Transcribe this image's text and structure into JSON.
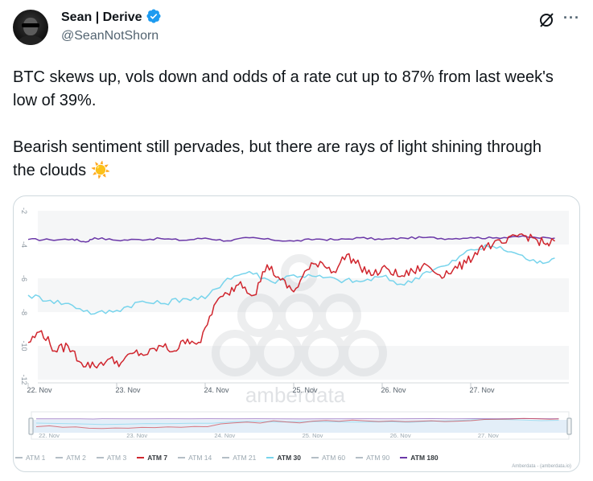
{
  "author": {
    "display_name": "Sean | Derive",
    "handle": "@SeanNotShorn",
    "verified": true
  },
  "icons": {
    "avatar": "avatar-photo",
    "verified": "verified-badge-icon",
    "grok": "grok-icon",
    "more": "more-options-icon"
  },
  "colors": {
    "verified": "#1d9bf0",
    "atm7": "#d0262e",
    "atm30": "#78d4ec",
    "atm180": "#6b38a8",
    "muted": "#536471"
  },
  "tweet": {
    "paragraph1": "BTC skews up, vols down and odds of a rate cut up to 87% from last week's low of 39%.",
    "paragraph2": "Bearish sentiment still pervades, but there are rays of light shining through the clouds",
    "emoji": "☀️"
  },
  "chart_data": {
    "type": "line",
    "title": "",
    "watermark": "amberdata",
    "credit": "Amberdata - (amberdata.io)",
    "xlabel": "",
    "ylabel": "",
    "x_ticks": [
      "22. Nov",
      "23. Nov",
      "24. Nov",
      "25. Nov",
      "26. Nov",
      "27. Nov"
    ],
    "navigator_ticks": [
      "22. Nov",
      "23. Nov",
      "24. Nov",
      "25. Nov",
      "26. Nov",
      "27. Nov"
    ],
    "y_ticks": [
      "-2",
      "-4",
      "-6",
      "-8",
      "-10",
      "-12"
    ],
    "ylim": [
      -12,
      -2
    ],
    "xlim": [
      0,
      6
    ],
    "legend": [
      {
        "name": "ATM 1",
        "active": false
      },
      {
        "name": "ATM 2",
        "active": false
      },
      {
        "name": "ATM 3",
        "active": false
      },
      {
        "name": "ATM 7",
        "active": true,
        "color": "#d0262e"
      },
      {
        "name": "ATM 14",
        "active": false
      },
      {
        "name": "ATM 21",
        "active": false
      },
      {
        "name": "ATM 30",
        "active": true,
        "color": "#78d4ec"
      },
      {
        "name": "ATM 60",
        "active": false
      },
      {
        "name": "ATM 90",
        "active": false
      },
      {
        "name": "ATM 180",
        "active": true,
        "color": "#6b38a8"
      }
    ],
    "series": [
      {
        "name": "ATM 180",
        "x": [
          0,
          0.25,
          0.5,
          0.65,
          0.75,
          1.0,
          1.25,
          1.5,
          1.75,
          2.0,
          2.25,
          2.5,
          2.75,
          3.0,
          3.25,
          3.5,
          3.75,
          4.0,
          4.25,
          4.5,
          4.75,
          5.0,
          5.25,
          5.5,
          5.75,
          5.95
        ],
        "values": [
          -3.7,
          -3.72,
          -3.68,
          -3.85,
          -3.6,
          -3.75,
          -3.7,
          -3.65,
          -3.75,
          -3.62,
          -3.78,
          -3.6,
          -3.72,
          -3.8,
          -3.68,
          -3.72,
          -3.6,
          -3.7,
          -3.62,
          -3.58,
          -3.66,
          -3.58,
          -3.62,
          -3.52,
          -3.6,
          -3.62
        ]
      },
      {
        "name": "ATM 30",
        "x": [
          0,
          0.25,
          0.5,
          0.75,
          1.0,
          1.25,
          1.5,
          1.75,
          2.0,
          2.25,
          2.5,
          2.75,
          3.0,
          3.25,
          3.5,
          3.75,
          4.0,
          4.25,
          4.5,
          4.75,
          5.0,
          5.25,
          5.5,
          5.75,
          5.95
        ],
        "values": [
          -7.0,
          -7.3,
          -7.6,
          -8.1,
          -7.9,
          -7.4,
          -7.5,
          -7.2,
          -7.2,
          -6.0,
          -5.6,
          -6.2,
          -5.8,
          -5.9,
          -6.1,
          -6.2,
          -5.9,
          -6.4,
          -5.6,
          -5.2,
          -4.3,
          -4.1,
          -4.5,
          -5.1,
          -4.8
        ]
      },
      {
        "name": "ATM 7",
        "x": [
          0,
          0.15,
          0.3,
          0.45,
          0.6,
          0.75,
          0.9,
          1.05,
          1.2,
          1.35,
          1.5,
          1.65,
          1.8,
          1.95,
          2.1,
          2.25,
          2.4,
          2.55,
          2.7,
          2.85,
          3.0,
          3.15,
          3.3,
          3.45,
          3.6,
          3.75,
          3.9,
          4.05,
          4.2,
          4.35,
          4.5,
          4.65,
          4.8,
          4.95,
          5.1,
          5.25,
          5.4,
          5.55,
          5.7,
          5.85,
          5.95
        ],
        "values": [
          -9.8,
          -9.1,
          -10.3,
          -10.0,
          -11.0,
          -11.2,
          -10.8,
          -11.0,
          -10.4,
          -10.5,
          -10.0,
          -10.3,
          -9.6,
          -9.8,
          -7.6,
          -6.9,
          -6.2,
          -7.0,
          -5.2,
          -6.1,
          -6.8,
          -5.5,
          -5.0,
          -5.6,
          -4.6,
          -5.3,
          -5.8,
          -5.4,
          -5.9,
          -5.6,
          -5.2,
          -5.8,
          -5.5,
          -5.1,
          -4.2,
          -4.0,
          -3.9,
          -3.4,
          -3.6,
          -4.0,
          -3.8
        ]
      }
    ]
  }
}
